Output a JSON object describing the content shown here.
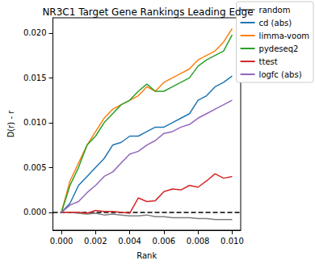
{
  "chart_data": {
    "type": "line",
    "title": "NR3C1 Target Gene Rankings Leading Edge",
    "x_label": "Rank",
    "y_label": "D(r) - r",
    "x": [
      0,
      0.0005,
      0.001,
      0.0015,
      0.002,
      0.0025,
      0.003,
      0.0035,
      0.004,
      0.0045,
      0.005,
      0.0055,
      0.006,
      0.0065,
      0.007,
      0.0075,
      0.008,
      0.0085,
      0.009,
      0.0095,
      0.01
    ],
    "series": [
      {
        "name": "random",
        "color": "#7f7f7f",
        "values": [
          0,
          0,
          -0.0001,
          -0.0002,
          -0.0001,
          -0.0003,
          -0.0002,
          -0.0003,
          -0.0004,
          -0.0004,
          -0.0003,
          -0.0005,
          -0.0005,
          -0.0006,
          -0.0006,
          -0.0006,
          -0.0007,
          -0.0007,
          -0.0008,
          -0.0008,
          -0.0008
        ]
      },
      {
        "name": "cd (abs)",
        "color": "#1f77b4",
        "values": [
          0,
          0.001,
          0.003,
          0.004,
          0.005,
          0.006,
          0.0075,
          0.0078,
          0.0085,
          0.0085,
          0.009,
          0.0095,
          0.0095,
          0.01,
          0.0105,
          0.011,
          0.0125,
          0.013,
          0.014,
          0.0145,
          0.0152
        ]
      },
      {
        "name": "limma-voom",
        "color": "#ff7f0e",
        "values": [
          0,
          0.0035,
          0.0055,
          0.0075,
          0.009,
          0.0105,
          0.0115,
          0.012,
          0.0125,
          0.013,
          0.014,
          0.0135,
          0.0145,
          0.015,
          0.0155,
          0.016,
          0.017,
          0.0175,
          0.018,
          0.019,
          0.0205
        ]
      },
      {
        "name": "pydeseq2",
        "color": "#2ca02c",
        "values": [
          0,
          0.003,
          0.005,
          0.0075,
          0.0085,
          0.01,
          0.011,
          0.012,
          0.0125,
          0.0135,
          0.0143,
          0.0135,
          0.0135,
          0.014,
          0.0145,
          0.015,
          0.0163,
          0.017,
          0.0175,
          0.018,
          0.0198
        ]
      },
      {
        "name": "ttest",
        "color": "#d62728",
        "values": [
          0,
          0,
          0,
          -0.0001,
          0.0002,
          0.0001,
          0.0001,
          0,
          -0.0001,
          0.0016,
          0.0012,
          0.0013,
          0.0023,
          0.0026,
          0.0025,
          0.003,
          0.0028,
          0.0035,
          0.0043,
          0.0038,
          0.004
        ]
      },
      {
        "name": "logfc (abs)",
        "color": "#9467bd",
        "values": [
          0,
          0.0008,
          0.0012,
          0.0022,
          0.003,
          0.004,
          0.0045,
          0.0055,
          0.0065,
          0.0068,
          0.0075,
          0.008,
          0.0088,
          0.009,
          0.0095,
          0.0098,
          0.0105,
          0.011,
          0.0115,
          0.012,
          0.0125
        ]
      }
    ],
    "hlines": [
      {
        "value": 0,
        "color": "#000000",
        "line_style": "dashed"
      }
    ],
    "xlim": [
      -0.0005,
      0.0105
    ],
    "ylim": [
      -0.002,
      0.0217
    ],
    "xticks": [
      {
        "value": 0,
        "label": "0.000"
      },
      {
        "value": 0.002,
        "label": "0.002"
      },
      {
        "value": 0.004,
        "label": "0.004"
      },
      {
        "value": 0.006,
        "label": "0.006"
      },
      {
        "value": 0.008,
        "label": "0.008"
      },
      {
        "value": 0.01,
        "label": "0.010"
      }
    ],
    "yticks": [
      {
        "value": 0,
        "label": "0.000"
      },
      {
        "value": 0.005,
        "label": "0.005"
      },
      {
        "value": 0.01,
        "label": "0.010"
      },
      {
        "value": 0.015,
        "label": "0.015"
      },
      {
        "value": 0.02,
        "label": "0.020"
      }
    ],
    "grid": false,
    "legend": "right"
  }
}
